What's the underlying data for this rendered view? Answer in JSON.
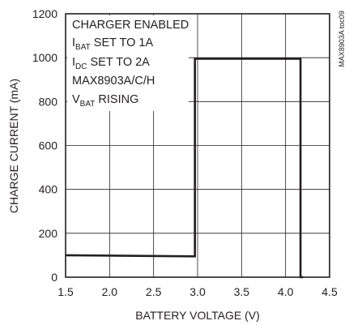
{
  "chart_data": {
    "type": "line",
    "title": "",
    "xlabel": "BATTERY VOLTAGE (V)",
    "ylabel": "CHARGE CURRENT (mA)",
    "xlim": [
      1.5,
      4.5
    ],
    "ylim": [
      0,
      1200
    ],
    "x_ticks": [
      "1.5",
      "2.0",
      "2.5",
      "3.0",
      "3.5",
      "4.0",
      "4.5"
    ],
    "y_ticks": [
      "0",
      "200",
      "400",
      "600",
      "800",
      "1000",
      "1200"
    ],
    "grid": true,
    "series": [
      {
        "x": [
          1.5,
          2.97,
          2.97,
          4.17,
          4.17,
          4.2
        ],
        "y": [
          100,
          95,
          995,
          995,
          0,
          0
        ],
        "color": "#231f20"
      }
    ],
    "annotations": [
      {
        "parts": [
          {
            "t": "CHARGER ENABLED",
            "sub": false
          }
        ]
      },
      {
        "parts": [
          {
            "t": "I",
            "sub": false
          },
          {
            "t": "BAT",
            "sub": true
          },
          {
            "t": " SET TO 1A",
            "sub": false
          }
        ]
      },
      {
        "parts": [
          {
            "t": "I",
            "sub": false
          },
          {
            "t": "DC",
            "sub": true
          },
          {
            "t": " SET TO 2A",
            "sub": false
          }
        ]
      },
      {
        "parts": [
          {
            "t": "MAX8903A/C/H",
            "sub": false
          }
        ]
      },
      {
        "parts": [
          {
            "t": "V",
            "sub": false
          },
          {
            "t": "BAT",
            "sub": true
          },
          {
            "t": " RISING",
            "sub": false
          }
        ]
      }
    ],
    "side_label": "MAX8903A toc09"
  }
}
